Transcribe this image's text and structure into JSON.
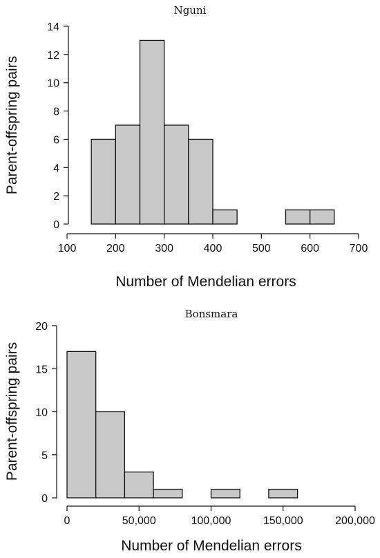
{
  "chart_data": [
    {
      "type": "bar",
      "title": "Nguni",
      "xlabel": "Number of Mendelian errors",
      "ylabel": "Parent-offspring pairs",
      "xlim": [
        100,
        700
      ],
      "ylim": [
        0,
        14
      ],
      "xticks": [
        100,
        200,
        300,
        400,
        500,
        600,
        700
      ],
      "xtick_labels": [
        "100",
        "200",
        "300",
        "400",
        "500",
        "600",
        "700"
      ],
      "yticks": [
        0,
        2,
        4,
        6,
        8,
        10,
        12,
        14
      ],
      "ytick_labels": [
        "0",
        "2",
        "4",
        "6",
        "8",
        "10",
        "12",
        "14"
      ],
      "bins": [
        {
          "x0": 150,
          "x1": 200,
          "count": 6
        },
        {
          "x0": 200,
          "x1": 250,
          "count": 7
        },
        {
          "x0": 250,
          "x1": 300,
          "count": 13
        },
        {
          "x0": 300,
          "x1": 350,
          "count": 7
        },
        {
          "x0": 350,
          "x1": 400,
          "count": 6
        },
        {
          "x0": 400,
          "x1": 450,
          "count": 1
        },
        {
          "x0": 450,
          "x1": 500,
          "count": 0
        },
        {
          "x0": 500,
          "x1": 550,
          "count": 0
        },
        {
          "x0": 550,
          "x1": 600,
          "count": 1
        },
        {
          "x0": 600,
          "x1": 650,
          "count": 1
        }
      ],
      "bar_color": "#c8c8c8",
      "edge_color": "#111111",
      "grid": false
    },
    {
      "type": "bar",
      "title": "Bonsmara",
      "xlabel": "Number of Mendelian errors",
      "ylabel": "Parent-offspring pairs",
      "xlim": [
        0,
        200000
      ],
      "ylim": [
        0,
        20
      ],
      "xticks": [
        0,
        50000,
        100000,
        150000,
        200000
      ],
      "xtick_labels": [
        "0",
        "50,000",
        "100,000",
        "150,000",
        "200,000"
      ],
      "yticks": [
        0,
        5,
        10,
        15,
        20
      ],
      "ytick_labels": [
        "0",
        "5",
        "10",
        "15",
        "20"
      ],
      "bins": [
        {
          "x0": 0,
          "x1": 20000,
          "count": 17
        },
        {
          "x0": 20000,
          "x1": 40000,
          "count": 10
        },
        {
          "x0": 40000,
          "x1": 60000,
          "count": 3
        },
        {
          "x0": 60000,
          "x1": 80000,
          "count": 1
        },
        {
          "x0": 80000,
          "x1": 100000,
          "count": 0
        },
        {
          "x0": 100000,
          "x1": 120000,
          "count": 1
        },
        {
          "x0": 120000,
          "x1": 140000,
          "count": 0
        },
        {
          "x0": 140000,
          "x1": 160000,
          "count": 1
        }
      ],
      "bar_color": "#c8c8c8",
      "edge_color": "#111111",
      "grid": false
    }
  ]
}
